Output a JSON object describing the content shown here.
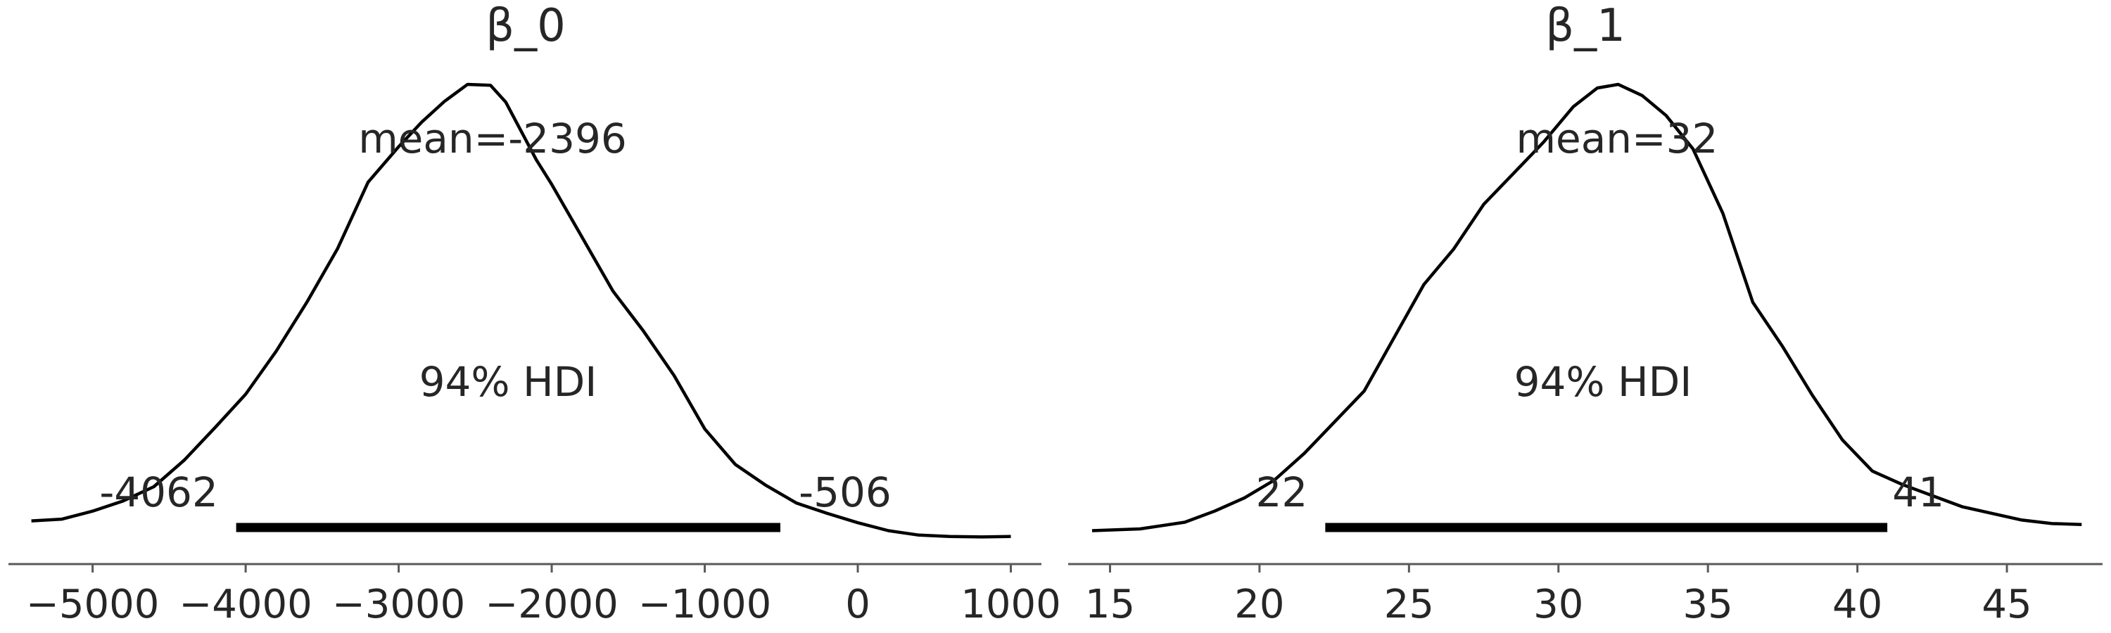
{
  "chart_data": [
    {
      "type": "area",
      "title": "β_0",
      "mean_label": "mean=-2396",
      "hdi_label": "94% HDI",
      "hdi_low_label": "-4062",
      "hdi_high_label": "-506",
      "mean": -2396,
      "hdi": [
        -4062,
        -506
      ],
      "xlim": [
        -5550,
        1200
      ],
      "ylim": [
        0,
        1
      ],
      "xticks": [
        -5000,
        -4000,
        -3000,
        -2000,
        -1000,
        0,
        1000
      ],
      "xtick_labels": [
        "−5000",
        "−4000",
        "−3000",
        "−2000",
        "−1000",
        "0",
        "1000"
      ],
      "density": {
        "x": [
          -5400,
          -5200,
          -5000,
          -4800,
          -4600,
          -4400,
          -4200,
          -4000,
          -3800,
          -3600,
          -3400,
          -3200,
          -3000,
          -2850,
          -2700,
          -2550,
          -2400,
          -2300,
          -2200,
          -2100,
          -2000,
          -1800,
          -1600,
          -1400,
          -1200,
          -1000,
          -800,
          -600,
          -400,
          -200,
          0,
          200,
          400,
          600,
          800,
          1000
        ],
        "y": [
          0.018,
          0.022,
          0.04,
          0.063,
          0.095,
          0.155,
          0.228,
          0.303,
          0.4,
          0.51,
          0.63,
          0.78,
          0.86,
          0.915,
          0.962,
          1.0,
          0.998,
          0.96,
          0.895,
          0.83,
          0.775,
          0.655,
          0.535,
          0.445,
          0.345,
          0.225,
          0.145,
          0.098,
          0.058,
          0.035,
          0.014,
          -0.004,
          -0.014,
          -0.017,
          -0.018,
          -0.017
        ]
      }
    },
    {
      "type": "area",
      "title": "β_1",
      "mean_label": "mean=32",
      "hdi_label": "94% HDI",
      "hdi_low_label": "22",
      "hdi_high_label": "41",
      "mean": 32,
      "hdi": [
        22.2,
        41
      ],
      "xlim": [
        13.6,
        48.2
      ],
      "ylim": [
        0,
        1
      ],
      "xticks": [
        15,
        20,
        25,
        30,
        35,
        40,
        45
      ],
      "xtick_labels": [
        "15",
        "20",
        "25",
        "30",
        "35",
        "40",
        "45"
      ],
      "density": {
        "x": [
          14.4,
          16,
          17.5,
          18.5,
          19.5,
          20.5,
          21.5,
          22.5,
          23.5,
          24.5,
          25.5,
          26.5,
          27.5,
          28.5,
          29.5,
          30.5,
          31.3,
          32,
          32.8,
          33.6,
          34.5,
          35.5,
          36.5,
          37.5,
          38.5,
          39.5,
          40.5,
          41.5,
          42.5,
          43.5,
          44.5,
          45.5,
          46.5,
          47.5
        ],
        "y": [
          -0.004,
          0,
          0.015,
          0.04,
          0.07,
          0.11,
          0.17,
          0.24,
          0.31,
          0.43,
          0.55,
          0.63,
          0.73,
          0.8,
          0.87,
          0.95,
          0.992,
          1.0,
          0.975,
          0.93,
          0.855,
          0.71,
          0.51,
          0.41,
          0.3,
          0.2,
          0.13,
          0.1,
          0.075,
          0.05,
          0.035,
          0.02,
          0.012,
          0.01
        ]
      }
    }
  ]
}
